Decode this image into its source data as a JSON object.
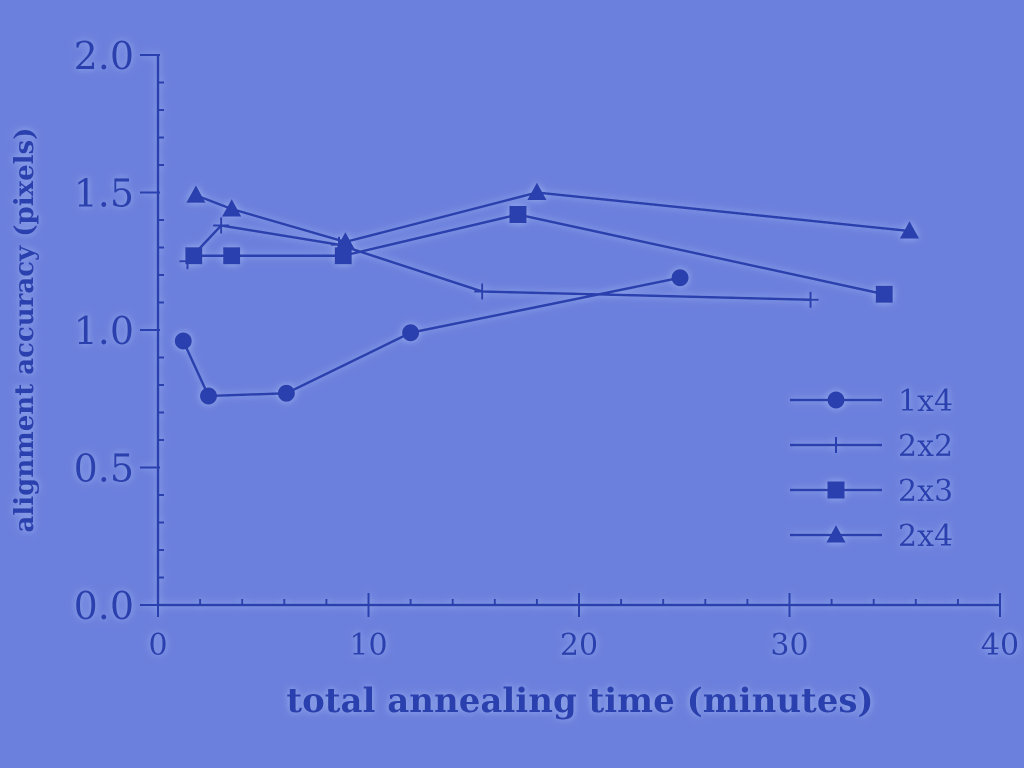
{
  "chart_data": {
    "type": "line",
    "xlabel": "total annealing time (minutes)",
    "ylabel": "alignment accuracy (pixels)",
    "xlim": [
      0,
      40
    ],
    "ylim": [
      0,
      2.0
    ],
    "xticks": [
      0,
      10,
      20,
      30,
      40
    ],
    "xtick_labels": [
      "0",
      "10",
      "20",
      "30",
      "40"
    ],
    "yticks": [
      0,
      0.5,
      1.0,
      1.5,
      2.0
    ],
    "ytick_labels": [
      "0.0",
      "0.5",
      "1.0",
      "1.5",
      "2.0"
    ],
    "grid": false,
    "legend_position": "right",
    "colors": {
      "ink": "#2b3fae",
      "background": "#6b7fdc"
    },
    "series": [
      {
        "name": "1x4",
        "marker": "circle",
        "points": [
          [
            1.2,
            0.96
          ],
          [
            2.4,
            0.76
          ],
          [
            6.1,
            0.77
          ],
          [
            12.0,
            0.99
          ],
          [
            24.8,
            1.19
          ]
        ]
      },
      {
        "name": "2x2",
        "marker": "plus",
        "points": [
          [
            1.4,
            1.25
          ],
          [
            3.0,
            1.38
          ],
          [
            8.6,
            1.31
          ],
          [
            15.4,
            1.14
          ],
          [
            31.0,
            1.11
          ]
        ]
      },
      {
        "name": "2x3",
        "marker": "square",
        "points": [
          [
            1.7,
            1.27
          ],
          [
            3.5,
            1.27
          ],
          [
            8.8,
            1.27
          ],
          [
            17.1,
            1.42
          ],
          [
            34.5,
            1.13
          ]
        ]
      },
      {
        "name": "2x4",
        "marker": "triangle",
        "points": [
          [
            1.8,
            1.49
          ],
          [
            3.5,
            1.44
          ],
          [
            8.9,
            1.32
          ],
          [
            18.0,
            1.5
          ],
          [
            35.7,
            1.36
          ]
        ]
      }
    ]
  }
}
